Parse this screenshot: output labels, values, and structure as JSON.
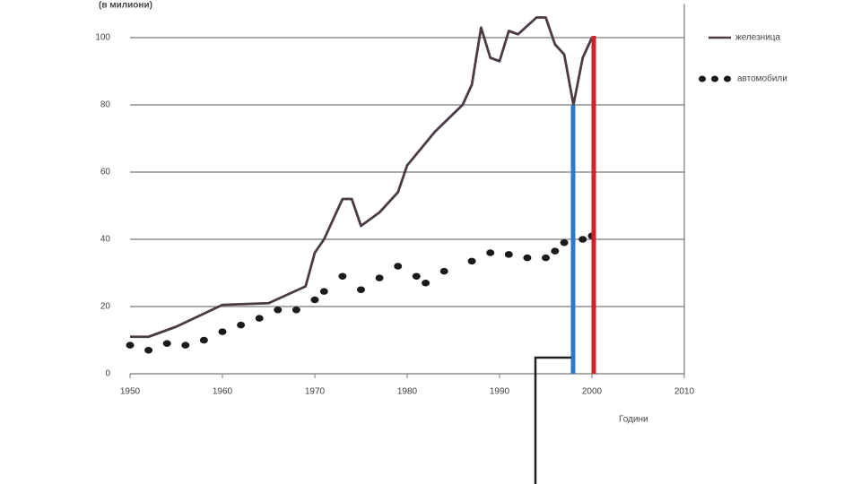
{
  "chart_data": {
    "type": "line",
    "y_label": "(в милиони)",
    "x_label": "Години",
    "xlim": [
      1950,
      2010
    ],
    "xticks": [
      1950,
      1960,
      1970,
      1980,
      1990,
      2000,
      2010
    ],
    "ylim": [
      0,
      110
    ],
    "yticks": [
      0,
      20,
      40,
      60,
      80,
      100
    ],
    "grid": true,
    "series": [
      {
        "name": "железница",
        "color": "#4a3b47",
        "style": "solid",
        "x": [
          1950,
          1952,
          1955,
          1960,
          1965,
          1969,
          1970,
          1971,
          1973,
          1974,
          1975,
          1977,
          1979,
          1980,
          1983,
          1986,
          1987,
          1988,
          1989,
          1990,
          1991,
          1992,
          1994,
          1995,
          1996,
          1997,
          1998,
          1999,
          2000
        ],
        "values": [
          11,
          11,
          14,
          20.5,
          21,
          26,
          36,
          40,
          52,
          52,
          44,
          48,
          54,
          62,
          72,
          80,
          86,
          103,
          94,
          93,
          102,
          101,
          106,
          106,
          98,
          95,
          80,
          94,
          100
        ]
      },
      {
        "name": "автомобили",
        "color": "#1a1a1a",
        "style": "dots",
        "x": [
          1950,
          1952,
          1954,
          1956,
          1958,
          1960,
          1962,
          1964,
          1966,
          1968,
          1970,
          1971,
          1973,
          1975,
          1977,
          1979,
          1981,
          1982,
          1984,
          1987,
          1989,
          1991,
          1993,
          1995,
          1996,
          1997,
          1999,
          2000
        ],
        "values": [
          8.5,
          7,
          9,
          8.5,
          10,
          12.5,
          14.5,
          16.5,
          19,
          19,
          22,
          24.5,
          29,
          25,
          28.5,
          32,
          29,
          27,
          30.5,
          33.5,
          36,
          35.5,
          34.5,
          34.5,
          36.5,
          39,
          40,
          41
        ]
      }
    ]
  }
}
